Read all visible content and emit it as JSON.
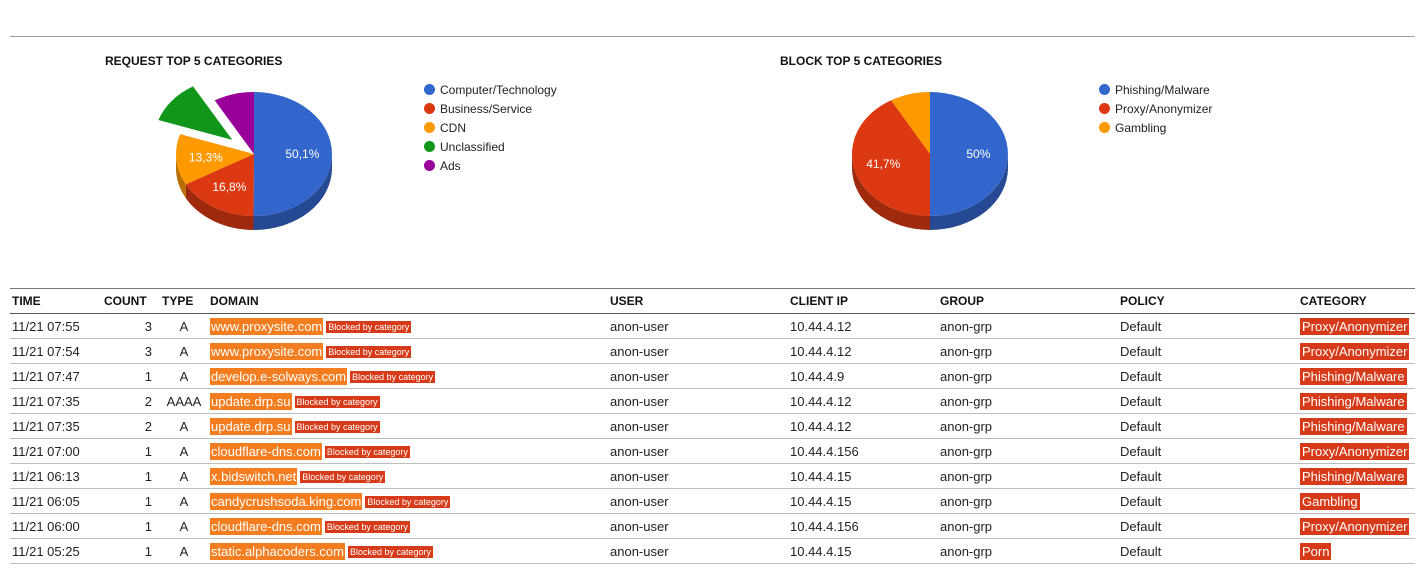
{
  "request_chart": {
    "title": "REQUEST TOP 5 CATEGORIES",
    "slices": [
      {
        "label": "Computer/Technology",
        "value": 50.1,
        "display": "50,1%",
        "color": "#3366cc"
      },
      {
        "label": "Business/Service",
        "value": 16.8,
        "display": "16,8%",
        "color": "#dc3912"
      },
      {
        "label": "CDN",
        "value": 13.3,
        "display": "13,3%",
        "color": "#ff9900"
      },
      {
        "label": "Unclassified",
        "value": 11.4,
        "display": "",
        "color": "#109618"
      },
      {
        "label": "Ads",
        "value": 8.4,
        "display": "",
        "color": "#990099"
      }
    ]
  },
  "block_chart": {
    "title": "BLOCK TOP 5 CATEGORIES",
    "slices": [
      {
        "label": "Phishing/Malware",
        "value": 50,
        "display": "50%",
        "color": "#3366cc"
      },
      {
        "label": "Proxy/Anonymizer",
        "value": 41.7,
        "display": "41,7%",
        "color": "#dc3912"
      },
      {
        "label": "Gambling",
        "value": 8.3,
        "display": "",
        "color": "#ff9900"
      }
    ]
  },
  "table": {
    "headers": {
      "time": "TIME",
      "count": "COUNT",
      "type": "TYPE",
      "domain": "DOMAIN",
      "user": "USER",
      "client_ip": "CLIENT IP",
      "group": "GROUP",
      "policy": "POLICY",
      "category": "CATEGORY"
    },
    "rows": [
      {
        "time": "11/21 07:55",
        "count": "3",
        "type": "A",
        "domain": "www.proxysite.com",
        "status": "Blocked by category",
        "user": "anon-user",
        "client_ip": "10.44.4.12",
        "group": "anon-grp",
        "policy": "Default",
        "category": "Proxy/Anonymizer"
      },
      {
        "time": "11/21 07:54",
        "count": "3",
        "type": "A",
        "domain": "www.proxysite.com",
        "status": "Blocked by category",
        "user": "anon-user",
        "client_ip": "10.44.4.12",
        "group": "anon-grp",
        "policy": "Default",
        "category": "Proxy/Anonymizer"
      },
      {
        "time": "11/21 07:47",
        "count": "1",
        "type": "A",
        "domain": "develop.e-solways.com",
        "status": "Blocked by category",
        "user": "anon-user",
        "client_ip": "10.44.4.9",
        "group": "anon-grp",
        "policy": "Default",
        "category": "Phishing/Malware"
      },
      {
        "time": "11/21 07:35",
        "count": "2",
        "type": "AAAA",
        "domain": "update.drp.su",
        "status": "Blocked by category",
        "user": "anon-user",
        "client_ip": "10.44.4.12",
        "group": "anon-grp",
        "policy": "Default",
        "category": "Phishing/Malware"
      },
      {
        "time": "11/21 07:35",
        "count": "2",
        "type": "A",
        "domain": "update.drp.su",
        "status": "Blocked by category",
        "user": "anon-user",
        "client_ip": "10.44.4.12",
        "group": "anon-grp",
        "policy": "Default",
        "category": "Phishing/Malware"
      },
      {
        "time": "11/21 07:00",
        "count": "1",
        "type": "A",
        "domain": "cloudflare-dns.com",
        "status": "Blocked by category",
        "user": "anon-user",
        "client_ip": "10.44.4.156",
        "group": "anon-grp",
        "policy": "Default",
        "category": "Proxy/Anonymizer"
      },
      {
        "time": "11/21 06:13",
        "count": "1",
        "type": "A",
        "domain": "x.bidswitch.net",
        "status": "Blocked by category",
        "user": "anon-user",
        "client_ip": "10.44.4.15",
        "group": "anon-grp",
        "policy": "Default",
        "category": "Phishing/Malware"
      },
      {
        "time": "11/21 06:05",
        "count": "1",
        "type": "A",
        "domain": "candycrushsoda.king.com",
        "status": "Blocked by category",
        "user": "anon-user",
        "client_ip": "10.44.4.15",
        "group": "anon-grp",
        "policy": "Default",
        "category": "Gambling"
      },
      {
        "time": "11/21 06:00",
        "count": "1",
        "type": "A",
        "domain": "cloudflare-dns.com",
        "status": "Blocked by category",
        "user": "anon-user",
        "client_ip": "10.44.4.156",
        "group": "anon-grp",
        "policy": "Default",
        "category": "Proxy/Anonymizer"
      },
      {
        "time": "11/21 05:25",
        "count": "1",
        "type": "A",
        "domain": "static.alphacoders.com",
        "status": "Blocked by category",
        "user": "anon-user",
        "client_ip": "10.44.4.15",
        "group": "anon-grp",
        "policy": "Default",
        "category": "Porn"
      }
    ]
  }
}
